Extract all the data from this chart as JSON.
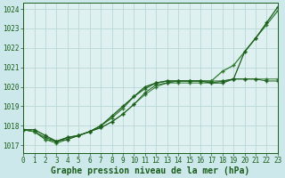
{
  "background_color": "#cce8ea",
  "plot_bg_color": "#dff0f0",
  "grid_color": "#b8d8d8",
  "line_color_dark": "#1a5c1a",
  "line_color_mid": "#2d7a2d",
  "xlabel": "Graphe pression niveau de la mer (hPa)",
  "xlabel_fontsize": 7,
  "tick_fontsize": 5.5,
  "xlim": [
    0,
    23
  ],
  "ylim": [
    1016.6,
    1024.3
  ],
  "yticks": [
    1017,
    1018,
    1019,
    1020,
    1021,
    1022,
    1023,
    1024
  ],
  "xticks": [
    0,
    1,
    2,
    3,
    4,
    5,
    6,
    7,
    8,
    9,
    10,
    11,
    12,
    13,
    14,
    15,
    16,
    17,
    18,
    19,
    20,
    21,
    22,
    23
  ],
  "line1_x": [
    0,
    1,
    2,
    3,
    4,
    5,
    6,
    7,
    8,
    9,
    10,
    11,
    12,
    13,
    14,
    15,
    16,
    17,
    18,
    19,
    20,
    21,
    22,
    23
  ],
  "line1_y": [
    1017.8,
    1017.8,
    1017.5,
    1017.2,
    1017.4,
    1017.5,
    1017.7,
    1018.0,
    1018.5,
    1019.0,
    1019.5,
    1020.0,
    1020.2,
    1020.3,
    1020.3,
    1020.3,
    1020.3,
    1020.2,
    1020.2,
    1020.4,
    1021.8,
    1022.5,
    1023.3,
    1024.1
  ],
  "line2_x": [
    0,
    1,
    2,
    3,
    4,
    5,
    6,
    7,
    8,
    9,
    10,
    11,
    12,
    13,
    14,
    15,
    16,
    17,
    18,
    19,
    20,
    21,
    22,
    23
  ],
  "line2_y": [
    1017.8,
    1017.7,
    1017.3,
    1017.2,
    1017.4,
    1017.5,
    1017.7,
    1018.0,
    1018.4,
    1018.9,
    1019.5,
    1019.9,
    1020.2,
    1020.3,
    1020.3,
    1020.3,
    1020.3,
    1020.3,
    1020.8,
    1021.1,
    1021.8,
    1022.5,
    1023.2,
    1023.9
  ],
  "line3_x": [
    0,
    1,
    2,
    3,
    4,
    5,
    6,
    7,
    8,
    9,
    10,
    11,
    12,
    13,
    14,
    15,
    16,
    17,
    18,
    19,
    20,
    21,
    22,
    23
  ],
  "line3_y": [
    1017.8,
    1017.7,
    1017.4,
    1017.2,
    1017.3,
    1017.5,
    1017.7,
    1017.9,
    1018.2,
    1018.6,
    1019.1,
    1019.7,
    1020.1,
    1020.2,
    1020.3,
    1020.3,
    1020.3,
    1020.3,
    1020.3,
    1020.4,
    1020.4,
    1020.4,
    1020.3,
    1020.3
  ],
  "line4_x": [
    0,
    1,
    2,
    3,
    4,
    5,
    6,
    7,
    8,
    9,
    10,
    11,
    12,
    13,
    14,
    15,
    16,
    17,
    18,
    19,
    20,
    21,
    22,
    23
  ],
  "line4_y": [
    1017.8,
    1017.7,
    1017.3,
    1017.1,
    1017.3,
    1017.5,
    1017.7,
    1017.9,
    1018.2,
    1018.6,
    1019.1,
    1019.6,
    1020.0,
    1020.2,
    1020.2,
    1020.2,
    1020.2,
    1020.2,
    1020.3,
    1020.4,
    1020.4,
    1020.4,
    1020.4,
    1020.4
  ]
}
